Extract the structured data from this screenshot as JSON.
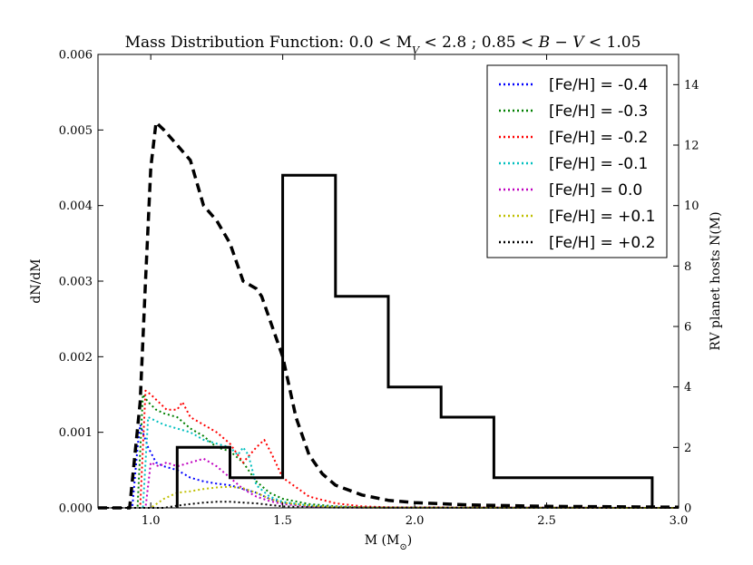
{
  "chart_data": {
    "type": "line",
    "title": "Mass Distribution Function: 0.0 < M_V < 2.8 ; 0.85 < B − V < 1.05",
    "title_parts": {
      "prefix": "Mass Distribution Function: 0.0 < M",
      "sub": "V",
      "suffix": " < 2.8 ; 0.85 < ",
      "b": "B",
      "minus": " − ",
      "v": "V",
      "tail": " < 1.05"
    },
    "xlabel": "M (M⊙)",
    "xlabel_parts": {
      "main": "M (M",
      "sub": "⊙",
      "close": ")"
    },
    "ylabel": "dN/dM",
    "y2label": "RV planet hosts N(M)",
    "xlim": [
      0.8,
      3.0
    ],
    "ylim": [
      0,
      0.006
    ],
    "y2lim": [
      0,
      15
    ],
    "x_ticks": [
      1.0,
      1.5,
      2.0,
      2.5,
      3.0
    ],
    "x_tick_labels": [
      "1.0",
      "1.5",
      "2.0",
      "2.5",
      "3.0"
    ],
    "y_ticks": [
      0,
      0.001,
      0.002,
      0.003,
      0.004,
      0.005,
      0.006
    ],
    "y_tick_labels": [
      "0.000",
      "0.001",
      "0.002",
      "0.003",
      "0.004",
      "0.005",
      "0.006"
    ],
    "y2_ticks": [
      0,
      2,
      4,
      6,
      8,
      10,
      12,
      14
    ],
    "y2_tick_labels": [
      "0",
      "2",
      "4",
      "6",
      "8",
      "10",
      "12",
      "14"
    ],
    "legend_position": "top-right",
    "series": [
      {
        "name": "[Fe/H] = -0.4",
        "color": "#0000ff",
        "style": "dotted",
        "x": [
          0.8,
          0.93,
          0.95,
          0.96,
          0.99,
          1.02,
          1.05,
          1.1,
          1.15,
          1.2,
          1.25,
          1.3,
          1.35,
          1.4,
          1.45,
          1.5,
          1.6,
          1.7,
          1.8,
          3.0
        ],
        "y": [
          0,
          0,
          0.0008,
          0.0011,
          0.0008,
          0.0006,
          0.00055,
          0.0005,
          0.0004,
          0.00035,
          0.00032,
          0.0003,
          0.00025,
          0.0002,
          0.00012,
          7e-05,
          3e-05,
          1.5e-05,
          5e-06,
          0
        ]
      },
      {
        "name": "[Fe/H] = -0.3",
        "color": "#008000",
        "style": "dotted",
        "x": [
          0.8,
          0.95,
          0.97,
          0.99,
          1.02,
          1.05,
          1.1,
          1.15,
          1.2,
          1.25,
          1.3,
          1.35,
          1.4,
          1.45,
          1.5,
          1.6,
          1.7,
          1.8,
          1.9,
          3.0
        ],
        "y": [
          0,
          0,
          0.0015,
          0.0014,
          0.0013,
          0.00125,
          0.0012,
          0.00105,
          0.00095,
          0.0008,
          0.00075,
          0.0006,
          0.00035,
          0.0002,
          0.00012,
          5e-05,
          2e-05,
          8e-06,
          3e-06,
          0
        ]
      },
      {
        "name": "[Fe/H] = -0.2",
        "color": "#ff0000",
        "style": "dotted",
        "x": [
          0.8,
          0.96,
          0.98,
          1.0,
          1.03,
          1.06,
          1.1,
          1.12,
          1.15,
          1.2,
          1.25,
          1.3,
          1.35,
          1.4,
          1.43,
          1.46,
          1.5,
          1.6,
          1.7,
          1.8,
          1.9,
          3.0
        ],
        "y": [
          0,
          0,
          0.00155,
          0.0015,
          0.0014,
          0.0013,
          0.0013,
          0.0014,
          0.0012,
          0.0011,
          0.001,
          0.00085,
          0.0006,
          0.0008,
          0.0009,
          0.0007,
          0.0004,
          0.00015,
          6e-05,
          2e-05,
          8e-06,
          0
        ]
      },
      {
        "name": "[Fe/H] = -0.1",
        "color": "#00bfbf",
        "style": "dotted",
        "x": [
          0.8,
          0.97,
          0.99,
          1.02,
          1.05,
          1.1,
          1.15,
          1.2,
          1.25,
          1.3,
          1.33,
          1.35,
          1.37,
          1.4,
          1.45,
          1.5,
          1.6,
          1.7,
          1.8,
          3.0
        ],
        "y": [
          0,
          0,
          0.0012,
          0.00115,
          0.0011,
          0.00105,
          0.001,
          0.0009,
          0.00085,
          0.0008,
          0.0007,
          0.0008,
          0.0007,
          0.0003,
          0.00015,
          8e-05,
          3e-05,
          1.2e-05,
          4e-06,
          0
        ]
      },
      {
        "name": "[Fe/H] = 0.0",
        "color": "#bf00bf",
        "style": "dotted",
        "x": [
          0.8,
          0.98,
          1.0,
          1.03,
          1.06,
          1.1,
          1.15,
          1.2,
          1.25,
          1.3,
          1.35,
          1.4,
          1.45,
          1.5,
          1.6,
          1.7,
          1.8,
          3.0
        ],
        "y": [
          0,
          0,
          0.0006,
          0.00055,
          0.0006,
          0.00055,
          0.0006,
          0.00065,
          0.00055,
          0.0004,
          0.00025,
          0.00015,
          9e-05,
          5e-05,
          2e-05,
          8e-06,
          3e-06,
          0
        ]
      },
      {
        "name": "[Fe/H] = +0.1",
        "color": "#bfbf00",
        "style": "dotted",
        "x": [
          0.8,
          1.0,
          1.05,
          1.1,
          1.15,
          1.2,
          1.25,
          1.3,
          1.35,
          1.4,
          1.45,
          1.5,
          1.6,
          1.7,
          1.8,
          3.0
        ],
        "y": [
          0,
          0,
          0.00012,
          0.0002,
          0.00022,
          0.00025,
          0.00027,
          0.00028,
          0.00026,
          0.0002,
          0.00012,
          7e-05,
          3e-05,
          1.2e-05,
          4e-06,
          0
        ]
      },
      {
        "name": "[Fe/H] = +0.2",
        "color": "#000000",
        "style": "dotted",
        "x": [
          0.8,
          1.05,
          1.1,
          1.15,
          1.2,
          1.25,
          1.3,
          1.35,
          1.4,
          1.45,
          1.5,
          1.6,
          1.7,
          1.8,
          3.0
        ],
        "y": [
          0,
          0,
          3e-05,
          5e-05,
          7e-05,
          8e-05,
          8e-05,
          7e-05,
          6e-05,
          4e-05,
          2e-05,
          1e-05,
          4e-06,
          2e-06,
          0
        ]
      },
      {
        "name": "Total",
        "color": "#000000",
        "style": "dashed",
        "axis": "left",
        "legend": false,
        "x": [
          0.8,
          0.92,
          0.96,
          0.98,
          1.0,
          1.02,
          1.05,
          1.1,
          1.15,
          1.2,
          1.25,
          1.3,
          1.35,
          1.4,
          1.42,
          1.45,
          1.5,
          1.55,
          1.6,
          1.65,
          1.7,
          1.8,
          1.9,
          2.0,
          2.2,
          2.5,
          3.0
        ],
        "y": [
          0,
          0,
          0.0014,
          0.003,
          0.0045,
          0.0051,
          0.005,
          0.0048,
          0.0046,
          0.004,
          0.0038,
          0.0035,
          0.003,
          0.0029,
          0.0028,
          0.0025,
          0.002,
          0.0012,
          0.0007,
          0.00045,
          0.0003,
          0.00017,
          0.0001,
          7e-05,
          4e-05,
          2e-05,
          1e-05
        ]
      }
    ],
    "histogram": {
      "name": "RV planet hosts N(M)",
      "axis": "right",
      "bin_edges": [
        1.1,
        1.3,
        1.5,
        1.7,
        1.9,
        2.1,
        2.3,
        2.9
      ],
      "counts": [
        2,
        1,
        11,
        7,
        4,
        3,
        1
      ]
    }
  }
}
